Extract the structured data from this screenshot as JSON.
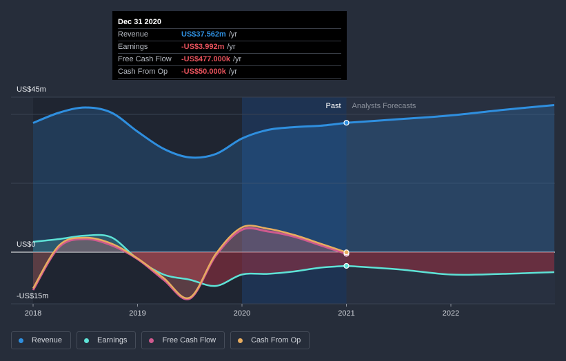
{
  "tooltip": {
    "date": "Dec 31 2020",
    "rows": [
      {
        "label": "Revenue",
        "value": "US$37.562m",
        "unit": "/yr",
        "color": "#2f8fdf"
      },
      {
        "label": "Earnings",
        "value": "-US$3.992m",
        "unit": "/yr",
        "color": "#e8525c"
      },
      {
        "label": "Free Cash Flow",
        "value": "-US$477.000k",
        "unit": "/yr",
        "color": "#e8525c"
      },
      {
        "label": "Cash From Op",
        "value": "-US$50.000k",
        "unit": "/yr",
        "color": "#e8525c"
      }
    ]
  },
  "legend": [
    {
      "label": "Revenue",
      "color": "#2f8fdf"
    },
    {
      "label": "Earnings",
      "color": "#5ee2d6"
    },
    {
      "label": "Free Cash Flow",
      "color": "#cf5a8e"
    },
    {
      "label": "Cash From Op",
      "color": "#e7ac5f"
    }
  ],
  "chart_data": {
    "type": "line",
    "title": "",
    "xlabel": "",
    "ylabel": "",
    "xlim": [
      2018,
      2022.99
    ],
    "ylim": [
      -15,
      45
    ],
    "y_tick_labels": [
      {
        "value": 45,
        "label": "US$45m"
      },
      {
        "value": 0,
        "label": "US$0"
      },
      {
        "value": -15,
        "label": "-US$15m"
      }
    ],
    "x_tick_labels": [
      {
        "value": 2018,
        "label": "2018"
      },
      {
        "value": 2019,
        "label": "2019"
      },
      {
        "value": 2020,
        "label": "2020"
      },
      {
        "value": 2021,
        "label": "2021"
      },
      {
        "value": 2022,
        "label": "2022"
      }
    ],
    "past_label": "Past",
    "forecast_label": "Analysts Forecasts",
    "past_start": 2020,
    "divider": 2021,
    "series": [
      {
        "name": "Revenue",
        "color": "#2f8fdf",
        "points": [
          [
            2018,
            37.5
          ],
          [
            2018.25,
            40.5
          ],
          [
            2018.5,
            42
          ],
          [
            2018.75,
            40.5
          ],
          [
            2019,
            35
          ],
          [
            2019.25,
            30
          ],
          [
            2019.5,
            27.5
          ],
          [
            2019.75,
            28.5
          ],
          [
            2020,
            33
          ],
          [
            2020.25,
            35.5
          ],
          [
            2020.5,
            36.3
          ],
          [
            2020.75,
            36.7
          ],
          [
            2021,
            37.56
          ]
        ],
        "forecast": [
          [
            2021,
            37.56
          ],
          [
            2021.5,
            38.6
          ],
          [
            2022,
            39.7
          ],
          [
            2022.5,
            41.3
          ],
          [
            2022.99,
            42.7
          ]
        ]
      },
      {
        "name": "Earnings",
        "color": "#5ee2d6",
        "points": [
          [
            2018,
            3
          ],
          [
            2018.25,
            3.8
          ],
          [
            2018.5,
            4.8
          ],
          [
            2018.75,
            4.3
          ],
          [
            2019,
            -2
          ],
          [
            2019.25,
            -6.5
          ],
          [
            2019.5,
            -8
          ],
          [
            2019.75,
            -9.8
          ],
          [
            2020,
            -6.5
          ],
          [
            2020.25,
            -6.3
          ],
          [
            2020.5,
            -5.6
          ],
          [
            2020.75,
            -4.5
          ],
          [
            2021,
            -3.99
          ]
        ],
        "forecast": [
          [
            2021,
            -3.99
          ],
          [
            2021.5,
            -5
          ],
          [
            2022,
            -6.5
          ],
          [
            2022.5,
            -6.3
          ],
          [
            2022.99,
            -5.8
          ]
        ]
      },
      {
        "name": "Free Cash Flow",
        "color": "#cf5a8e",
        "points": [
          [
            2018,
            -11
          ],
          [
            2018.25,
            1.5
          ],
          [
            2018.5,
            3.8
          ],
          [
            2018.75,
            2
          ],
          [
            2019,
            -2
          ],
          [
            2019.25,
            -8
          ],
          [
            2019.5,
            -13.5
          ],
          [
            2019.75,
            -1
          ],
          [
            2020,
            6.5
          ],
          [
            2020.25,
            6
          ],
          [
            2020.5,
            4.5
          ],
          [
            2020.75,
            2
          ],
          [
            2021,
            -0.48
          ]
        ]
      },
      {
        "name": "Cash From Op",
        "color": "#e7ac5f",
        "points": [
          [
            2018,
            -10.5
          ],
          [
            2018.25,
            2
          ],
          [
            2018.5,
            4.2
          ],
          [
            2018.75,
            2.5
          ],
          [
            2019,
            -1.8
          ],
          [
            2019.25,
            -7.5
          ],
          [
            2019.5,
            -13.2
          ],
          [
            2019.75,
            -0.5
          ],
          [
            2020,
            7.2
          ],
          [
            2020.25,
            6.8
          ],
          [
            2020.5,
            5
          ],
          [
            2020.75,
            2.5
          ],
          [
            2021,
            -0.05
          ]
        ]
      }
    ]
  }
}
